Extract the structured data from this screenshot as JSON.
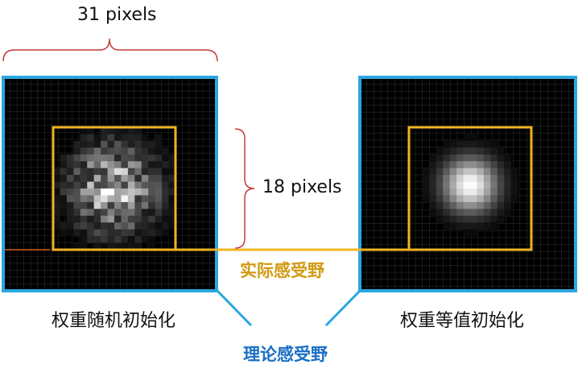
{
  "annotations": {
    "top_dimension": "31 pixels",
    "side_dimension": "18 pixels",
    "left_caption": "权重随机初始化",
    "right_caption": "权重等值初始化",
    "effective_rf_label": "实际感受野",
    "theoretical_rf_label": "理论感受野"
  },
  "colors": {
    "panel_border": "#2aa7df",
    "erf_box": "#f0b323",
    "erf_text": "#d19a12",
    "trf_text": "#1a6fc4",
    "brace": "#c23b3b",
    "panel_bg": "#000000"
  }
}
